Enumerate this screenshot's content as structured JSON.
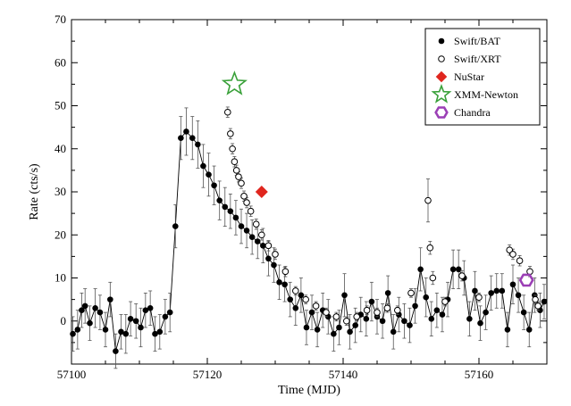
{
  "chart_data": {
    "type": "scatter",
    "title": "",
    "xlabel": "Time (MJD)",
    "ylabel": "Rate (cts/s)",
    "xlim": [
      57100,
      57170
    ],
    "ylim": [
      -10,
      70
    ],
    "x_ticks": [
      57100,
      57120,
      57140,
      57160
    ],
    "y_ticks": [
      0,
      10,
      20,
      30,
      40,
      50,
      60,
      70
    ],
    "legend_position": "top-right",
    "series": [
      {
        "name": "Swift/BAT",
        "marker": "filled-circle",
        "color": "#000000",
        "connected": true,
        "points": [
          {
            "x": 57100.2,
            "y": -3.0,
            "err": 4.0
          },
          {
            "x": 57100.9,
            "y": -2.0,
            "err": 4.5
          },
          {
            "x": 57101.5,
            "y": 2.5,
            "err": 4.0
          },
          {
            "x": 57102.0,
            "y": 3.5,
            "err": 4.0
          },
          {
            "x": 57102.7,
            "y": -0.5,
            "err": 4.0
          },
          {
            "x": 57103.5,
            "y": 3.0,
            "err": 4.5
          },
          {
            "x": 57104.2,
            "y": 2.0,
            "err": 4.0
          },
          {
            "x": 57105.0,
            "y": -2.0,
            "err": 4.0
          },
          {
            "x": 57105.7,
            "y": 5.0,
            "err": 4.0
          },
          {
            "x": 57106.5,
            "y": -7.0,
            "err": 4.0
          },
          {
            "x": 57107.3,
            "y": -2.5,
            "err": 4.0
          },
          {
            "x": 57108.0,
            "y": -3.0,
            "err": 4.5
          },
          {
            "x": 57108.7,
            "y": 0.5,
            "err": 4.0
          },
          {
            "x": 57109.5,
            "y": 0.0,
            "err": 4.0
          },
          {
            "x": 57110.2,
            "y": -1.5,
            "err": 4.5
          },
          {
            "x": 57110.9,
            "y": 2.5,
            "err": 4.0
          },
          {
            "x": 57111.6,
            "y": 3.0,
            "err": 4.0
          },
          {
            "x": 57112.3,
            "y": -3.0,
            "err": 4.0
          },
          {
            "x": 57113.0,
            "y": -2.5,
            "err": 4.0
          },
          {
            "x": 57113.8,
            "y": 1.0,
            "err": 4.0
          },
          {
            "x": 57114.5,
            "y": 2.0,
            "err": 4.5
          },
          {
            "x": 57115.3,
            "y": 22.0,
            "err": 5.0
          },
          {
            "x": 57116.1,
            "y": 42.5,
            "err": 5.0
          },
          {
            "x": 57116.9,
            "y": 44.0,
            "err": 5.5
          },
          {
            "x": 57117.8,
            "y": 42.5,
            "err": 5.0
          },
          {
            "x": 57118.6,
            "y": 41.0,
            "err": 5.5
          },
          {
            "x": 57119.4,
            "y": 36.0,
            "err": 5.0
          },
          {
            "x": 57120.2,
            "y": 34.0,
            "err": 5.0
          },
          {
            "x": 57121.0,
            "y": 31.5,
            "err": 4.5
          },
          {
            "x": 57121.8,
            "y": 28.0,
            "err": 4.5
          },
          {
            "x": 57122.6,
            "y": 26.5,
            "err": 4.5
          },
          {
            "x": 57123.4,
            "y": 25.5,
            "err": 4.0
          },
          {
            "x": 57124.2,
            "y": 24.0,
            "err": 4.0
          },
          {
            "x": 57125.0,
            "y": 22.0,
            "err": 4.0
          },
          {
            "x": 57125.8,
            "y": 21.0,
            "err": 4.0
          },
          {
            "x": 57126.6,
            "y": 19.5,
            "err": 4.0
          },
          {
            "x": 57127.4,
            "y": 18.5,
            "err": 4.0
          },
          {
            "x": 57128.2,
            "y": 17.5,
            "err": 4.0
          },
          {
            "x": 57129.0,
            "y": 14.5,
            "err": 4.0
          },
          {
            "x": 57129.8,
            "y": 13.0,
            "err": 4.0
          },
          {
            "x": 57130.6,
            "y": 9.0,
            "err": 4.0
          },
          {
            "x": 57131.4,
            "y": 8.5,
            "err": 4.0
          },
          {
            "x": 57132.2,
            "y": 5.0,
            "err": 4.0
          },
          {
            "x": 57133.0,
            "y": 3.0,
            "err": 4.0
          },
          {
            "x": 57133.8,
            "y": 6.0,
            "err": 4.0
          },
          {
            "x": 57134.6,
            "y": -1.5,
            "err": 4.0
          },
          {
            "x": 57135.4,
            "y": 2.0,
            "err": 4.0
          },
          {
            "x": 57136.2,
            "y": -2.0,
            "err": 4.0
          },
          {
            "x": 57137.0,
            "y": 2.5,
            "err": 4.0
          },
          {
            "x": 57137.8,
            "y": 1.0,
            "err": 4.0
          },
          {
            "x": 57138.6,
            "y": -3.0,
            "err": 4.0
          },
          {
            "x": 57139.4,
            "y": -1.5,
            "err": 4.0
          },
          {
            "x": 57140.2,
            "y": 6.0,
            "err": 5.0
          },
          {
            "x": 57141.0,
            "y": -2.5,
            "err": 4.0
          },
          {
            "x": 57141.8,
            "y": -1.0,
            "err": 4.0
          },
          {
            "x": 57142.6,
            "y": 1.5,
            "err": 4.0
          },
          {
            "x": 57143.4,
            "y": 0.5,
            "err": 4.0
          },
          {
            "x": 57144.2,
            "y": 4.5,
            "err": 4.5
          },
          {
            "x": 57145.0,
            "y": 1.0,
            "err": 4.0
          },
          {
            "x": 57145.8,
            "y": 0.0,
            "err": 4.0
          },
          {
            "x": 57146.6,
            "y": 6.5,
            "err": 4.0
          },
          {
            "x": 57147.4,
            "y": -2.5,
            "err": 4.0
          },
          {
            "x": 57148.2,
            "y": 1.5,
            "err": 4.0
          },
          {
            "x": 57149.0,
            "y": 0.0,
            "err": 4.0
          },
          {
            "x": 57149.8,
            "y": -1.0,
            "err": 4.0
          },
          {
            "x": 57150.6,
            "y": 3.5,
            "err": 4.0
          },
          {
            "x": 57151.4,
            "y": 12.0,
            "err": 5.0
          },
          {
            "x": 57152.2,
            "y": 5.5,
            "err": 4.5
          },
          {
            "x": 57153.0,
            "y": 0.5,
            "err": 4.0
          },
          {
            "x": 57153.8,
            "y": 2.5,
            "err": 4.0
          },
          {
            "x": 57154.6,
            "y": 1.5,
            "err": 4.0
          },
          {
            "x": 57155.4,
            "y": 5.0,
            "err": 4.0
          },
          {
            "x": 57156.2,
            "y": 12.0,
            "err": 4.5
          },
          {
            "x": 57157.0,
            "y": 12.0,
            "err": 4.5
          },
          {
            "x": 57157.8,
            "y": 10.0,
            "err": 4.0
          },
          {
            "x": 57158.6,
            "y": 0.5,
            "err": 4.0
          },
          {
            "x": 57159.4,
            "y": 7.0,
            "err": 4.5
          },
          {
            "x": 57160.2,
            "y": -0.5,
            "err": 4.0
          },
          {
            "x": 57161.0,
            "y": 2.0,
            "err": 4.0
          },
          {
            "x": 57161.8,
            "y": 6.5,
            "err": 4.0
          },
          {
            "x": 57162.6,
            "y": 7.0,
            "err": 4.0
          },
          {
            "x": 57163.4,
            "y": 7.0,
            "err": 4.0
          },
          {
            "x": 57164.2,
            "y": -2.0,
            "err": 4.0
          },
          {
            "x": 57165.0,
            "y": 8.5,
            "err": 4.5
          },
          {
            "x": 57165.8,
            "y": 6.0,
            "err": 4.0
          },
          {
            "x": 57166.6,
            "y": 2.0,
            "err": 4.0
          },
          {
            "x": 57167.4,
            "y": -2.0,
            "err": 4.0
          },
          {
            "x": 57168.2,
            "y": 6.0,
            "err": 4.0
          },
          {
            "x": 57169.0,
            "y": 2.5,
            "err": 4.0
          },
          {
            "x": 57169.6,
            "y": 4.5,
            "err": 4.0
          }
        ]
      },
      {
        "name": "Swift/XRT",
        "marker": "open-circle",
        "color": "#000000",
        "connected": false,
        "points": [
          {
            "x": 57123.0,
            "y": 48.5,
            "err": 1.2
          },
          {
            "x": 57123.4,
            "y": 43.5,
            "err": 1.2
          },
          {
            "x": 57123.7,
            "y": 40.0,
            "err": 1.2
          },
          {
            "x": 57124.0,
            "y": 37.0,
            "err": 1.2
          },
          {
            "x": 57124.3,
            "y": 35.0,
            "err": 1.2
          },
          {
            "x": 57124.6,
            "y": 33.5,
            "err": 1.2
          },
          {
            "x": 57125.0,
            "y": 32.0,
            "err": 1.2
          },
          {
            "x": 57125.4,
            "y": 29.0,
            "err": 1.2
          },
          {
            "x": 57125.8,
            "y": 27.5,
            "err": 1.2
          },
          {
            "x": 57126.4,
            "y": 25.5,
            "err": 1.2
          },
          {
            "x": 57127.2,
            "y": 22.5,
            "err": 1.2
          },
          {
            "x": 57128.0,
            "y": 20.0,
            "err": 1.2
          },
          {
            "x": 57129.0,
            "y": 17.5,
            "err": 1.2
          },
          {
            "x": 57130.0,
            "y": 15.5,
            "err": 1.2
          },
          {
            "x": 57131.5,
            "y": 11.5,
            "err": 1.2
          },
          {
            "x": 57133.0,
            "y": 7.0,
            "err": 1.0
          },
          {
            "x": 57134.5,
            "y": 5.0,
            "err": 1.0
          },
          {
            "x": 57136.0,
            "y": 3.5,
            "err": 1.0
          },
          {
            "x": 57137.5,
            "y": 2.0,
            "err": 1.0
          },
          {
            "x": 57139.0,
            "y": 1.0,
            "err": 1.0
          },
          {
            "x": 57140.5,
            "y": 0.0,
            "err": 1.0
          },
          {
            "x": 57142.0,
            "y": 1.0,
            "err": 1.0
          },
          {
            "x": 57143.5,
            "y": 2.5,
            "err": 1.0
          },
          {
            "x": 57145.0,
            "y": 2.0,
            "err": 1.0
          },
          {
            "x": 57146.5,
            "y": 3.0,
            "err": 1.0
          },
          {
            "x": 57148.0,
            "y": 2.5,
            "err": 1.0
          },
          {
            "x": 57150.0,
            "y": 6.5,
            "err": 1.0
          },
          {
            "x": 57152.5,
            "y": 28.0,
            "err": 5.0
          },
          {
            "x": 57152.8,
            "y": 17.0,
            "err": 1.5
          },
          {
            "x": 57153.2,
            "y": 10.0,
            "err": 1.5
          },
          {
            "x": 57155.0,
            "y": 4.5,
            "err": 1.0
          },
          {
            "x": 57157.5,
            "y": 10.5,
            "err": 1.2
          },
          {
            "x": 57160.0,
            "y": 5.5,
            "err": 1.0
          },
          {
            "x": 57164.5,
            "y": 16.5,
            "err": 1.2
          },
          {
            "x": 57165.0,
            "y": 15.5,
            "err": 1.2
          },
          {
            "x": 57166.0,
            "y": 14.0,
            "err": 1.2
          },
          {
            "x": 57167.5,
            "y": 11.5,
            "err": 1.2
          },
          {
            "x": 57168.3,
            "y": 5.0,
            "err": 1.0
          },
          {
            "x": 57168.7,
            "y": 3.5,
            "err": 1.0
          }
        ]
      },
      {
        "name": "NuStar",
        "marker": "diamond",
        "color": "#e0261e",
        "connected": false,
        "points": [
          {
            "x": 57128.0,
            "y": 30.0
          }
        ]
      },
      {
        "name": "XMM-Newton",
        "marker": "star",
        "color": "#3aa13a",
        "connected": false,
        "points": [
          {
            "x": 57124.0,
            "y": 55.0
          }
        ]
      },
      {
        "name": "Chandra",
        "marker": "hexagon",
        "color": "#9b3fb5",
        "connected": false,
        "points": [
          {
            "x": 57167.0,
            "y": 9.5
          }
        ]
      }
    ]
  }
}
